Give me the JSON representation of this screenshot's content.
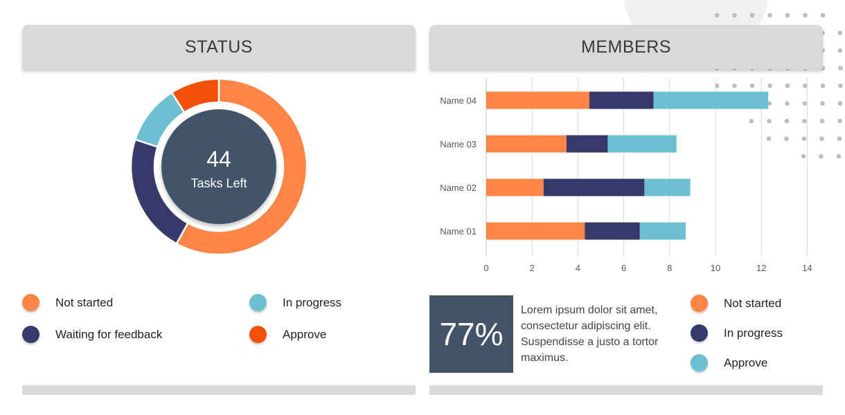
{
  "status": {
    "title": "STATUS",
    "center_value": "44",
    "center_label": "Tasks Left",
    "legend": [
      {
        "label": "Not started",
        "color": "#ff8547"
      },
      {
        "label": "In progress",
        "color": "#6cc0d1"
      },
      {
        "label": "Waiting for feedback",
        "color": "#353a6b"
      },
      {
        "label": "Approve",
        "color": "#f24f07"
      }
    ]
  },
  "members": {
    "title": "MEMBERS",
    "stat_value": "77%",
    "stat_text": "Lorem ipsum dolor sit amet, consectetur adipiscing elit. Suspendisse a justo a tortor maximus.",
    "legend": [
      {
        "label": "Not started",
        "color": "#ff8547"
      },
      {
        "label": "In progress",
        "color": "#353a6b"
      },
      {
        "label": "Approve",
        "color": "#6cc0d1"
      }
    ]
  },
  "chart_data": [
    {
      "type": "pie",
      "donut": true,
      "categories": [
        "Not started",
        "Waiting for feedback",
        "In progress",
        "Approve"
      ],
      "values": [
        58,
        22,
        11,
        9
      ],
      "colors": [
        "#ff8547",
        "#353a6b",
        "#6cc0d1",
        "#f24f07"
      ]
    },
    {
      "type": "bar",
      "orientation": "horizontal",
      "stacked": true,
      "categories": [
        "Name 01",
        "Name 02",
        "Name 03",
        "Name 04"
      ],
      "series": [
        {
          "name": "Not started",
          "values": [
            4.3,
            2.5,
            3.5,
            4.5
          ],
          "color": "#ff8547"
        },
        {
          "name": "In progress",
          "values": [
            2.4,
            4.4,
            1.8,
            2.8
          ],
          "color": "#353a6b"
        },
        {
          "name": "Approve",
          "values": [
            2.0,
            2.0,
            3.0,
            5.0
          ],
          "color": "#6cc0d1"
        }
      ],
      "xlim": [
        0,
        14
      ],
      "xticks": [
        0,
        2,
        4,
        6,
        8,
        10,
        12,
        14
      ],
      "grid": true
    }
  ]
}
